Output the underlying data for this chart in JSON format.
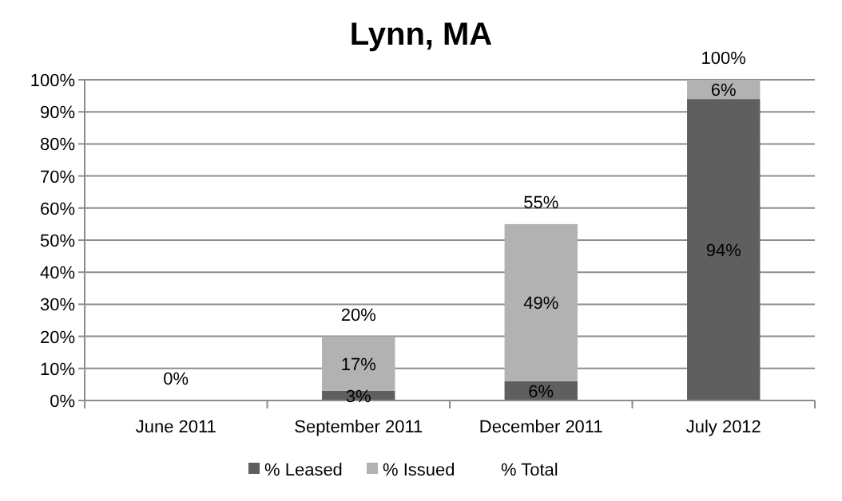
{
  "chart_data": {
    "type": "bar",
    "title": "Lynn, MA",
    "categories": [
      "June 2011",
      "September 2011",
      "December 2011",
      "July 2012"
    ],
    "stacked": true,
    "ylim": [
      0,
      100
    ],
    "yticks": [
      {
        "value": 0,
        "label": "0%"
      },
      {
        "value": 10,
        "label": "10%"
      },
      {
        "value": 20,
        "label": "20%"
      },
      {
        "value": 30,
        "label": "30%"
      },
      {
        "value": 40,
        "label": "40%"
      },
      {
        "value": 50,
        "label": "50%"
      },
      {
        "value": 60,
        "label": "60%"
      },
      {
        "value": 70,
        "label": "70%"
      },
      {
        "value": 80,
        "label": "80%"
      },
      {
        "value": 90,
        "label": "90%"
      },
      {
        "value": 100,
        "label": "100%"
      }
    ],
    "grid": "y",
    "legend": "bottom",
    "series": [
      {
        "name": "% Leased",
        "color": "#5f5f5f",
        "values": [
          0,
          3,
          6,
          94
        ],
        "value_labels": [
          null,
          "3%",
          "6%",
          "94%"
        ]
      },
      {
        "name": "% Issued",
        "color": "#b2b2b2",
        "values": [
          0,
          17,
          49,
          6
        ],
        "value_labels": [
          null,
          "17%",
          "49%",
          "6%"
        ]
      },
      {
        "name": "% Total",
        "values": [
          null,
          null,
          null,
          null
        ]
      }
    ],
    "totals": [
      "0%",
      "20%",
      "55%",
      "100%"
    ]
  }
}
